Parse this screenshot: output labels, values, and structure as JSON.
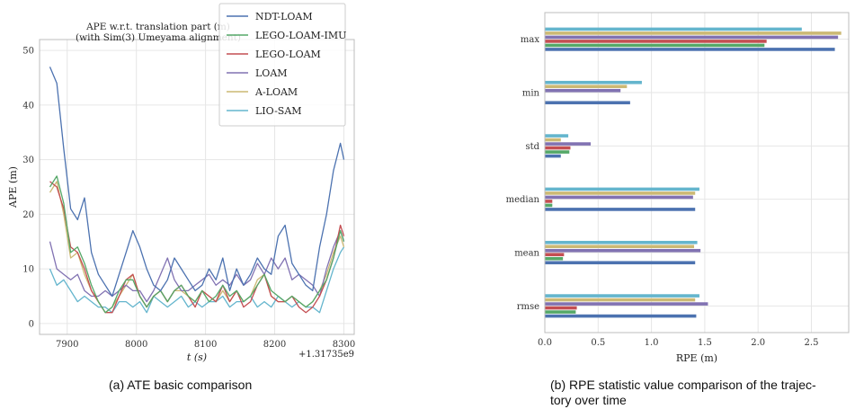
{
  "colors": {
    "NDT-LOAM": "#4c72b0",
    "LEGO-LOAM-IMU": "#55a868",
    "LEGO-LOAM": "#c44e52",
    "LOAM": "#8172b2",
    "A-LOAM": "#ccb974",
    "LIO-SAM": "#64b5cd",
    "grid": "#e6e6e6",
    "frame": "#bcbcbc"
  },
  "captions": {
    "left": "(a) ATE basic comparison",
    "right": "(b) RPE statistic value comparison of the trajec- tory over time"
  },
  "chart_data": [
    {
      "type": "line",
      "title": "APE w.r.t. translation part (m)",
      "subtitle": "(with Sim(3) Umeyama alignment)",
      "xlabel": "t (s)",
      "ylabel": "APE (m)",
      "x_offset_label": "+1.31735e9",
      "xlim": [
        7860,
        8315
      ],
      "ylim": [
        -2,
        52
      ],
      "xticks": [
        7900,
        8000,
        8100,
        8200,
        8300
      ],
      "yticks": [
        0,
        10,
        20,
        30,
        40,
        50
      ],
      "grid": true,
      "legend_position": "upper-right",
      "x": [
        7875,
        7885,
        7895,
        7905,
        7915,
        7925,
        7935,
        7945,
        7955,
        7965,
        7975,
        7985,
        7995,
        8005,
        8015,
        8025,
        8035,
        8045,
        8055,
        8065,
        8075,
        8085,
        8095,
        8105,
        8115,
        8125,
        8135,
        8145,
        8155,
        8165,
        8175,
        8185,
        8195,
        8205,
        8215,
        8225,
        8235,
        8245,
        8255,
        8265,
        8275,
        8285,
        8295,
        8300
      ],
      "series": [
        {
          "name": "NDT-LOAM",
          "values": [
            47,
            44,
            32,
            21,
            19,
            23,
            13,
            9,
            7,
            5,
            9,
            13,
            17,
            14,
            10,
            7,
            6,
            8,
            12,
            10,
            8,
            6,
            7,
            10,
            8,
            12,
            6,
            10,
            7,
            9,
            12,
            10,
            9,
            16,
            18,
            11,
            9,
            7,
            6,
            14,
            20,
            28,
            33,
            30
          ]
        },
        {
          "name": "LEGO-LOAM-IMU",
          "values": [
            25,
            27,
            22,
            13,
            14,
            11,
            7,
            4,
            2,
            3,
            6,
            8,
            8,
            5,
            3,
            5,
            6,
            4,
            6,
            7,
            5,
            4,
            6,
            4,
            5,
            7,
            5,
            6,
            4,
            5,
            7,
            9,
            6,
            5,
            4,
            5,
            4,
            3,
            4,
            6,
            8,
            12,
            17,
            15
          ]
        },
        {
          "name": "LEGO-LOAM",
          "values": [
            26,
            25,
            21,
            14,
            13,
            10,
            6,
            4,
            2,
            2,
            5,
            8,
            9,
            5,
            3,
            5,
            6,
            4,
            6,
            7,
            5,
            3,
            6,
            5,
            4,
            7,
            4,
            6,
            3,
            4,
            7,
            9,
            5,
            4,
            4,
            5,
            3,
            2,
            3,
            5,
            8,
            12,
            18,
            16
          ]
        },
        {
          "name": "LOAM",
          "values": [
            15,
            10,
            9,
            8,
            9,
            6,
            5,
            5,
            6,
            5,
            6,
            7,
            6,
            6,
            4,
            6,
            9,
            12,
            8,
            6,
            6,
            7,
            8,
            9,
            7,
            8,
            7,
            9,
            7,
            8,
            11,
            9,
            12,
            10,
            12,
            8,
            9,
            8,
            7,
            5,
            10,
            14,
            17,
            15
          ]
        },
        {
          "name": "A-LOAM",
          "values": [
            24,
            26,
            20,
            12,
            13,
            9,
            6,
            4,
            2,
            3,
            5,
            7,
            9,
            5,
            3,
            5,
            6,
            4,
            6,
            6,
            5,
            4,
            6,
            5,
            4,
            6,
            4,
            6,
            4,
            5,
            8,
            9,
            5,
            4,
            4,
            5,
            4,
            3,
            4,
            6,
            9,
            13,
            16,
            14
          ]
        },
        {
          "name": "LIO-SAM",
          "values": [
            10,
            7,
            8,
            6,
            4,
            5,
            4,
            3,
            3,
            2,
            4,
            4,
            3,
            4,
            2,
            5,
            4,
            3,
            4,
            5,
            3,
            4,
            3,
            4,
            4,
            5,
            3,
            4,
            4,
            5,
            3,
            4,
            3,
            5,
            4,
            3,
            4,
            3,
            3,
            2,
            6,
            10,
            13,
            14
          ]
        }
      ]
    },
    {
      "type": "bar",
      "orientation": "horizontal",
      "xlabel": "RPE (m)",
      "xlim": [
        0,
        2.85
      ],
      "xticks": [
        0.0,
        0.5,
        1.0,
        1.5,
        2.0,
        2.5
      ],
      "categories": [
        "max",
        "min",
        "std",
        "median",
        "mean",
        "rmse"
      ],
      "grid": true,
      "series": [
        {
          "name": "LIO-SAM",
          "values": [
            2.41,
            0.91,
            0.22,
            1.45,
            1.43,
            1.45
          ]
        },
        {
          "name": "A-LOAM",
          "values": [
            2.78,
            0.77,
            0.15,
            1.41,
            1.4,
            1.41
          ]
        },
        {
          "name": "LOAM",
          "values": [
            2.75,
            0.71,
            0.43,
            1.39,
            1.46,
            1.53
          ]
        },
        {
          "name": "LEGO-LOAM",
          "values": [
            2.08,
            0.0,
            0.24,
            0.07,
            0.18,
            0.3
          ]
        },
        {
          "name": "LEGO-LOAM-IMU",
          "values": [
            2.06,
            0.0,
            0.23,
            0.07,
            0.17,
            0.29
          ]
        },
        {
          "name": "NDT-LOAM",
          "values": [
            2.72,
            0.8,
            0.15,
            1.41,
            1.41,
            1.42
          ]
        }
      ]
    }
  ]
}
